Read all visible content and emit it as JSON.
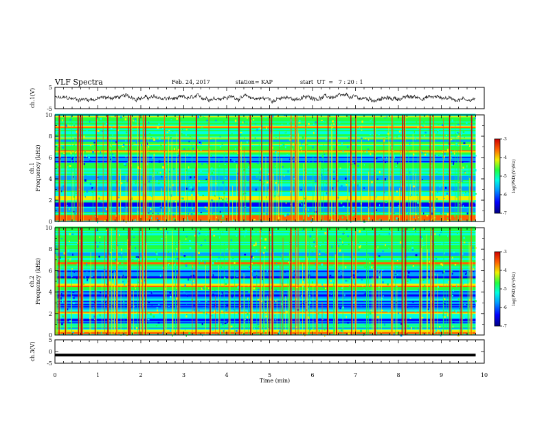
{
  "header": {
    "title": "VLF Spectra",
    "date": "Feb. 24, 2017",
    "station": "station= KAP",
    "start": "start  UT  =   7 : 20 : 1"
  },
  "chart_data": [
    {
      "type": "line",
      "name": "ch1-waveform",
      "ylabel": "ch.1(V)",
      "ylim": [
        -5,
        5
      ],
      "yticks": [
        "5",
        "-5"
      ],
      "xlim": [
        0,
        10
      ],
      "x_extent": [
        0,
        9.8
      ],
      "baseline": 0,
      "amplitude_hint": 1.5
    },
    {
      "type": "heatmap",
      "name": "ch1-spectrogram",
      "ylabel": "ch.1\nFrequency (kHz)",
      "ylim": [
        0,
        10
      ],
      "yticks": [
        "0",
        "2",
        "4",
        "6",
        "8",
        "10"
      ],
      "xlim": [
        0,
        10
      ],
      "x_extent": [
        0,
        9.8
      ],
      "colorbar": {
        "label": "log(PSD)(V²/Hz)",
        "range": [
          -7,
          -3
        ],
        "ticks": [
          "-3",
          "-4",
          "-5",
          "-6",
          "-7"
        ]
      },
      "dark_bands_khz": [
        [
          0.8,
          1.2
        ],
        [
          1.4,
          1.8
        ],
        [
          2.9,
          3.3
        ],
        [
          3.9,
          4.3
        ],
        [
          5.4,
          6.0
        ],
        [
          7.4,
          7.6
        ]
      ],
      "bright_bands_khz": [
        [
          0.1,
          0.5
        ],
        [
          2.0,
          2.4
        ],
        [
          6.4,
          6.6
        ],
        [
          8.7,
          8.9
        ]
      ]
    },
    {
      "type": "heatmap",
      "name": "ch2-spectrogram",
      "ylabel": "ch.2\nFrequency (kHz)",
      "ylim": [
        0,
        10
      ],
      "yticks": [
        "0",
        "2",
        "4",
        "6",
        "8",
        "10"
      ],
      "xlim": [
        0,
        10
      ],
      "x_extent": [
        0,
        9.8
      ],
      "colorbar": {
        "label": "log(PSD)(V²/Hz)",
        "range": [
          -7,
          -3
        ],
        "ticks": [
          "-3",
          "-4",
          "-5",
          "-6",
          "-7"
        ]
      },
      "dark_bands_khz": [
        [
          1.0,
          1.6
        ],
        [
          2.4,
          3.2
        ],
        [
          3.5,
          4.1
        ],
        [
          5.2,
          6.0
        ],
        [
          7.3,
          7.6
        ]
      ],
      "bright_bands_khz": [
        [
          0.1,
          0.4
        ],
        [
          2.0,
          2.2
        ],
        [
          4.5,
          4.7
        ],
        [
          6.5,
          6.7
        ]
      ]
    },
    {
      "type": "line",
      "name": "ch3-waveform",
      "ylabel": "ch.3(V)",
      "ylim": [
        -5,
        5
      ],
      "yticks": [
        "5",
        "0",
        "-5"
      ],
      "xlim": [
        0,
        10
      ],
      "x_extent": [
        0,
        9.8
      ],
      "constant_value": -1.5
    }
  ],
  "xaxis": {
    "label": "Time (min)",
    "ticks": [
      "0",
      "1",
      "2",
      "3",
      "4",
      "5",
      "6",
      "7",
      "8",
      "9",
      "10"
    ],
    "range": [
      0,
      10
    ]
  },
  "spike_times_min": [
    0.1,
    0.25,
    0.55,
    0.6,
    0.62,
    0.95,
    1.22,
    1.45,
    1.7,
    1.75,
    1.95,
    2.05,
    2.1,
    2.55,
    2.9,
    3.3,
    3.6,
    4.05,
    4.3,
    4.55,
    4.8,
    5.0,
    5.05,
    5.5,
    5.6,
    5.65,
    5.85,
    6.1,
    6.35,
    6.55,
    6.9,
    7.0,
    7.45,
    7.85,
    8.1,
    8.15,
    8.5,
    8.75,
    8.8,
    9.2,
    9.45,
    9.7
  ]
}
